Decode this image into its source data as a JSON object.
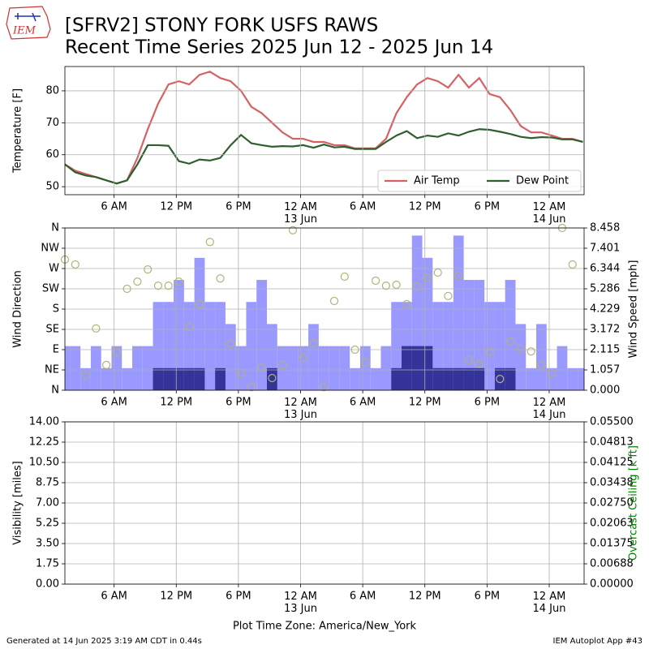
{
  "title": [
    "[SFRV2] STONY FORK USFS RAWS",
    "Recent Time Series 2025 Jun 12 - 2025 Jun 14"
  ],
  "logo": "IEM",
  "footer": {
    "left": "Generated at 14 Jun 2025 3:19 AM CDT in 0.44s",
    "right": "IEM Autoplot App #43"
  },
  "chart_data": [
    {
      "type": "line",
      "ylabel": "Temperature [F]",
      "grid": true,
      "legend": "lower right",
      "xlim": [
        1.25,
        51.37
      ],
      "xticks": [
        {
          "value": 6,
          "label": "6 AM"
        },
        {
          "value": 12,
          "label": "12 PM"
        },
        {
          "value": 18,
          "label": "6 PM"
        },
        {
          "value": 24,
          "label": "12 AM\n13 Jun"
        },
        {
          "value": 30,
          "label": "6 AM"
        },
        {
          "value": 36,
          "label": "12 PM"
        },
        {
          "value": 42,
          "label": "6 PM"
        },
        {
          "value": 48,
          "label": "12 AM\n14 Jun"
        }
      ],
      "ylim": [
        47.5,
        87.6
      ],
      "yticks": [
        50,
        60,
        70,
        80
      ],
      "x": [
        1.25,
        2.25,
        3.25,
        4.25,
        5.25,
        6.25,
        7.25,
        8.25,
        9.25,
        10.25,
        11.25,
        12.25,
        13.25,
        14.25,
        15.25,
        16.25,
        17.25,
        18.25,
        19.25,
        20.25,
        21.25,
        22.25,
        23.25,
        24.25,
        25.25,
        26.25,
        27.25,
        28.25,
        29.25,
        30.25,
        31.25,
        32.25,
        33.25,
        34.25,
        35.25,
        36.25,
        37.25,
        38.25,
        39.25,
        40.25,
        41.25,
        42.25,
        43.25,
        44.25,
        45.25,
        46.25,
        47.25,
        48.25,
        49.25,
        50.25,
        51.25
      ],
      "series": [
        {
          "name": "Air Temp",
          "color": "#d46264",
          "values": [
            57,
            55,
            54,
            53,
            52,
            51,
            52,
            59,
            68,
            76,
            82,
            83,
            82,
            85,
            86,
            84,
            83,
            80,
            75,
            73,
            70,
            67,
            65,
            65,
            64,
            64,
            63,
            63,
            62,
            62,
            62,
            65,
            73,
            78,
            82,
            84,
            83,
            81,
            85,
            81,
            84,
            79,
            78,
            74,
            69,
            67,
            67,
            66,
            65,
            65,
            64
          ]
        },
        {
          "name": "Dew Point",
          "color": "#2f5f2f",
          "values": [
            57,
            54.5,
            53.5,
            53,
            52,
            51,
            52,
            57,
            63,
            63,
            62.8,
            58,
            57.2,
            58.5,
            58.2,
            59,
            63,
            66.2,
            63.6,
            63,
            62.5,
            62.7,
            62.6,
            63,
            62.2,
            63.2,
            62.3,
            62.5,
            61.8,
            61.8,
            61.8,
            64,
            66,
            67.4,
            65.2,
            66,
            65.6,
            66.7,
            66,
            67.2,
            68,
            67.8,
            67.2,
            66.5,
            65.6,
            65.2,
            65.5,
            65.4,
            64.8,
            64.8,
            64
          ]
        }
      ]
    },
    {
      "type": "bar",
      "ylabel": "Wind Direction",
      "y2label": "Wind Speed [mph]",
      "grid": true,
      "xlim": [
        1.25,
        51.37
      ],
      "xticks": [
        {
          "value": 6,
          "label": "6 AM"
        },
        {
          "value": 12,
          "label": "12 PM"
        },
        {
          "value": 18,
          "label": "6 PM"
        },
        {
          "value": 24,
          "label": "12 AM\n13 Jun"
        },
        {
          "value": 30,
          "label": "6 AM"
        },
        {
          "value": 36,
          "label": "12 PM"
        },
        {
          "value": 42,
          "label": "6 PM"
        },
        {
          "value": 48,
          "label": "12 AM\n14 Jun"
        }
      ],
      "ylim": [
        0,
        360
      ],
      "yticks": [
        {
          "value": 0,
          "label": "N"
        },
        {
          "value": 45,
          "label": "NE"
        },
        {
          "value": 90,
          "label": "E"
        },
        {
          "value": 135,
          "label": "SE"
        },
        {
          "value": 180,
          "label": "S"
        },
        {
          "value": 225,
          "label": "SW"
        },
        {
          "value": 270,
          "label": "W"
        },
        {
          "value": 315,
          "label": "NW"
        },
        {
          "value": 360,
          "label": "N"
        }
      ],
      "y2lim": [
        0,
        8.458
      ],
      "y2ticks": [
        {
          "value": 0,
          "label": "0.000"
        },
        1.057,
        2.115,
        3.172,
        4.229,
        5.286,
        6.344,
        7.401,
        8.458
      ],
      "x": [
        1.25,
        2.25,
        3.25,
        4.25,
        5.25,
        6.25,
        7.25,
        8.25,
        9.25,
        10.25,
        11.25,
        12.25,
        13.25,
        14.25,
        15.25,
        16.25,
        17.25,
        18.25,
        19.25,
        20.25,
        21.25,
        22.25,
        23.25,
        24.25,
        25.25,
        26.25,
        27.25,
        28.25,
        29.25,
        30.25,
        31.25,
        32.25,
        33.25,
        34.25,
        35.25,
        36.25,
        37.25,
        38.25,
        39.25,
        40.25,
        41.25,
        42.25,
        43.25,
        44.25,
        45.25,
        46.25,
        47.25,
        48.25,
        49.25,
        50.25,
        51.25
      ],
      "series": [
        {
          "type": "bar",
          "axis": "y2",
          "color": "#9999ff",
          "values": [
            2.3,
            2.3,
            1.15,
            2.3,
            1.15,
            2.3,
            1.15,
            2.3,
            2.3,
            4.6,
            4.6,
            5.75,
            4.6,
            6.9,
            4.6,
            4.6,
            3.45,
            2.3,
            4.6,
            5.75,
            3.45,
            2.3,
            2.3,
            2.3,
            3.45,
            2.3,
            2.3,
            2.3,
            1.15,
            2.3,
            1.15,
            2.3,
            4.6,
            4.6,
            8.06,
            6.9,
            4.6,
            4.6,
            8.06,
            5.75,
            5.75,
            4.6,
            4.6,
            5.75,
            3.45,
            1.15,
            3.45,
            1.15,
            2.3,
            1.15,
            1.15
          ]
        },
        {
          "type": "bar",
          "axis": "y2",
          "color": "#333399",
          "values": [
            0,
            0,
            0,
            0,
            0,
            0,
            0,
            0,
            0,
            1.15,
            1.15,
            1.15,
            1.15,
            1.15,
            0,
            1.15,
            0,
            0,
            0,
            0,
            1.15,
            0,
            0,
            0,
            0,
            0,
            0,
            0,
            0,
            0,
            0,
            0,
            1.15,
            2.3,
            2.3,
            2.3,
            1.15,
            1.15,
            1.15,
            1.15,
            1.15,
            0,
            1.15,
            1.15,
            0,
            0,
            0,
            0,
            0,
            0,
            0
          ]
        },
        {
          "type": "scatter",
          "color": "#b2b27a",
          "values": [
            290,
            279,
            32,
            137,
            56,
            83,
            225,
            241,
            268,
            232,
            232,
            241,
            140,
            191,
            329,
            248,
            103,
            38,
            7,
            50,
            27,
            56,
            355,
            72,
            104,
            7,
            198,
            252,
            90,
            61,
            243,
            232,
            234,
            191,
            230,
            250,
            261,
            209,
            254,
            67,
            58,
            85,
            25,
            108,
            92,
            86,
            56,
            38,
            360,
            279,
            null
          ]
        }
      ]
    },
    {
      "type": "line",
      "ylabel": "Visibility [miles]",
      "y2label": "Overcast Ceiling [k ft]",
      "y2label_color": "#008000",
      "grid": true,
      "xlabel": "Plot Time Zone: America/New_York",
      "xlim": [
        1.25,
        51.37
      ],
      "xticks": [
        {
          "value": 6,
          "label": "6 AM"
        },
        {
          "value": 12,
          "label": "12 PM"
        },
        {
          "value": 18,
          "label": "6 PM"
        },
        {
          "value": 24,
          "label": "12 AM\n13 Jun"
        },
        {
          "value": 30,
          "label": "6 AM"
        },
        {
          "value": 36,
          "label": "12 PM"
        },
        {
          "value": 42,
          "label": "6 PM"
        },
        {
          "value": 48,
          "label": "12 AM\n14 Jun"
        }
      ],
      "ylim": [
        0,
        14
      ],
      "yticks": [
        {
          "value": 0,
          "label": "0.00"
        },
        1.75,
        {
          "value": 3.5,
          "label": "3.50"
        },
        {
          "value": 5.25,
          "label": "5.25"
        },
        {
          "value": 7,
          "label": "7.00"
        },
        8.75,
        {
          "value": 10.5,
          "label": "10.50"
        },
        12.25,
        {
          "value": 14,
          "label": "14.00"
        }
      ],
      "y2lim": [
        0,
        0.055
      ],
      "y2ticks": [
        {
          "value": 0,
          "label": "0.00000"
        },
        {
          "value": 0.006875,
          "label": "0.00688"
        },
        0.01375,
        {
          "value": 0.020625,
          "label": "0.02063"
        },
        {
          "value": 0.0275,
          "label": "0.02750"
        },
        {
          "value": 0.034375,
          "label": "0.03438"
        },
        0.04125,
        {
          "value": 0.048125,
          "label": "0.04813"
        },
        {
          "value": 0.055,
          "label": "0.05500"
        }
      ],
      "series": []
    }
  ]
}
